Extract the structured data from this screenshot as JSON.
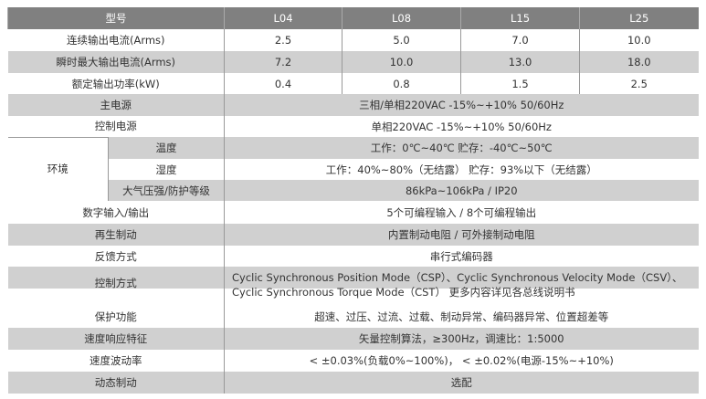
{
  "header": {
    "label": "型号",
    "models": [
      "L04",
      "L08",
      "L15",
      "L25"
    ]
  },
  "rows": [
    {
      "label": "连续输出电流(Arms)",
      "values": [
        "2.5",
        "5.0",
        "7.0",
        "10.0"
      ]
    },
    {
      "label": "瞬时最大输出电流(Arms)",
      "values": [
        "7.2",
        "10.0",
        "13.0",
        "18.0"
      ]
    },
    {
      "label": "额定输出功率(kW)",
      "values": [
        "0.4",
        "0.8",
        "1.5",
        "2.5"
      ]
    }
  ],
  "main_power": {
    "label": "主电源",
    "value": "三相/单相220VAC  -15%~+10%  50/60Hz"
  },
  "control_power": {
    "label": "控制电源",
    "value": "单相220VAC   -15%~+10%   50/60Hz"
  },
  "environment": {
    "label": "环境",
    "items": [
      {
        "label": "温度",
        "value": "工作：0℃~40℃      贮存：-40℃~50℃"
      },
      {
        "label": "湿度",
        "value": "工作：40%~80%（无结露）   贮存：93%以下（无结露）"
      },
      {
        "label": "大气压强/防护等级",
        "value": "86kPa~106kPa  /  IP20"
      }
    ]
  },
  "digital_io": {
    "label": "数字输入/输出",
    "value": "5个可编程输入 / 8个可编程输出"
  },
  "regen": {
    "label": "再生制动",
    "value": "内置制动电阻 / 可外接制动电阻"
  },
  "feedback": {
    "label": "反馈方式",
    "value": "串行式编码器"
  },
  "control_mode": {
    "label": "控制方式",
    "line1": "Cyclic Synchronous Position Mode（CSP）、Cyclic Synchronous Velocity Mode（CSV）、",
    "line2": "Cyclic Synchronous Torque Mode（CST） 更多内容详见各总线说明书"
  },
  "protection": {
    "label": "保护功能",
    "value": "超速、过压、过流、过载、制动异常、编码器异常、位置超差等"
  },
  "speed_response": {
    "label": "速度响应特征",
    "value": "矢量控制算法，≥300Hz，调速比：1:5000"
  },
  "speed_ripple": {
    "label": "速度波动率",
    "value": "< ±0.03%(负载0%~100%)， < ±0.02%(电源-15%~+10%)"
  },
  "dynamic_brake": {
    "label": "动态制动",
    "value": "选配"
  }
}
